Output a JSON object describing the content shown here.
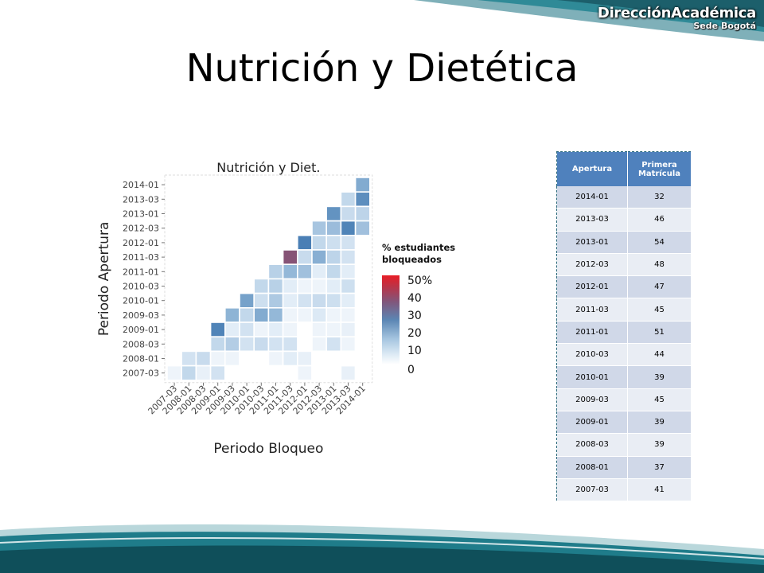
{
  "header": {
    "brand": "DirecciónAcadémica",
    "brand_sub": "Sede Bogotá",
    "title": "Nutrición y Dietética"
  },
  "legend": {
    "title_line1": "% estudiantes",
    "title_line2": "bloqueados",
    "ticks": [
      "50%",
      "40",
      "30",
      "20",
      "10",
      "0"
    ]
  },
  "table": {
    "headers": [
      "Apertura",
      "Primera Matrícula"
    ],
    "rows": [
      [
        "2014-01",
        "32"
      ],
      [
        "2013-03",
        "46"
      ],
      [
        "2013-01",
        "54"
      ],
      [
        "2012-03",
        "48"
      ],
      [
        "2012-01",
        "47"
      ],
      [
        "2011-03",
        "45"
      ],
      [
        "2011-01",
        "51"
      ],
      [
        "2010-03",
        "44"
      ],
      [
        "2010-01",
        "39"
      ],
      [
        "2009-03",
        "45"
      ],
      [
        "2009-01",
        "39"
      ],
      [
        "2008-03",
        "39"
      ],
      [
        "2008-01",
        "37"
      ],
      [
        "2007-03",
        "41"
      ]
    ]
  },
  "colors": {
    "accent": "#4f81bd",
    "scale_low": "#ffffff",
    "scale_mid": "#4a7fb5",
    "scale_high": "#e81d26",
    "footer": "#1f7c8a"
  },
  "chart_data": {
    "type": "heatmap",
    "title": "Nutrición y Diet.",
    "xlabel": "Periodo Bloqueo",
    "ylabel": "Periodo Apertura",
    "value_label": "% estudiantes bloqueados",
    "x": [
      "2007-03",
      "2008-01",
      "2008-03",
      "2009-01",
      "2009-03",
      "2010-01",
      "2010-03",
      "2011-01",
      "2011-03",
      "2012-01",
      "2012-03",
      "2013-01",
      "2013-03",
      "2014-01"
    ],
    "y": [
      "2014-01",
      "2013-03",
      "2013-01",
      "2012-03",
      "2012-01",
      "2011-03",
      "2011-01",
      "2010-03",
      "2010-01",
      "2009-03",
      "2009-01",
      "2008-03",
      "2008-01",
      "2007-03"
    ],
    "values": [
      [
        0,
        0,
        0,
        0,
        0,
        0,
        0,
        0,
        0,
        0,
        0,
        0,
        0,
        22
      ],
      [
        0,
        0,
        0,
        0,
        0,
        0,
        0,
        0,
        0,
        0,
        0,
        0,
        11,
        28
      ],
      [
        0,
        0,
        0,
        0,
        0,
        0,
        0,
        0,
        0,
        0,
        0,
        27,
        10,
        12
      ],
      [
        0,
        0,
        0,
        0,
        0,
        0,
        0,
        0,
        0,
        0,
        16,
        18,
        30,
        17
      ],
      [
        0,
        0,
        0,
        0,
        0,
        0,
        0,
        0,
        0,
        31,
        11,
        9,
        8,
        0
      ],
      [
        0,
        0,
        0,
        0,
        0,
        0,
        0,
        0,
        42,
        10,
        21,
        12,
        8,
        0
      ],
      [
        0,
        0,
        0,
        0,
        0,
        0,
        0,
        13,
        19,
        17,
        5,
        11,
        5,
        0
      ],
      [
        0,
        0,
        0,
        0,
        0,
        0,
        11,
        13,
        5,
        3,
        3,
        5,
        9,
        0
      ],
      [
        0,
        0,
        0,
        0,
        0,
        24,
        9,
        15,
        5,
        8,
        10,
        9,
        5,
        0
      ],
      [
        0,
        0,
        0,
        0,
        20,
        11,
        22,
        19,
        3,
        3,
        6,
        3,
        3,
        0
      ],
      [
        0,
        0,
        0,
        30,
        5,
        8,
        3,
        5,
        3,
        0,
        3,
        3,
        4,
        0
      ],
      [
        0,
        0,
        0,
        11,
        14,
        8,
        10,
        8,
        8,
        0,
        3,
        8,
        3,
        0
      ],
      [
        0,
        8,
        10,
        3,
        3,
        0,
        0,
        3,
        5,
        4,
        0,
        0,
        0,
        0
      ],
      [
        3,
        11,
        4,
        8,
        0,
        0,
        0,
        0,
        0,
        3,
        0,
        0,
        4,
        0
      ]
    ],
    "vmin": 0,
    "vmax": 50,
    "grid": true,
    "legend_position": "right"
  }
}
